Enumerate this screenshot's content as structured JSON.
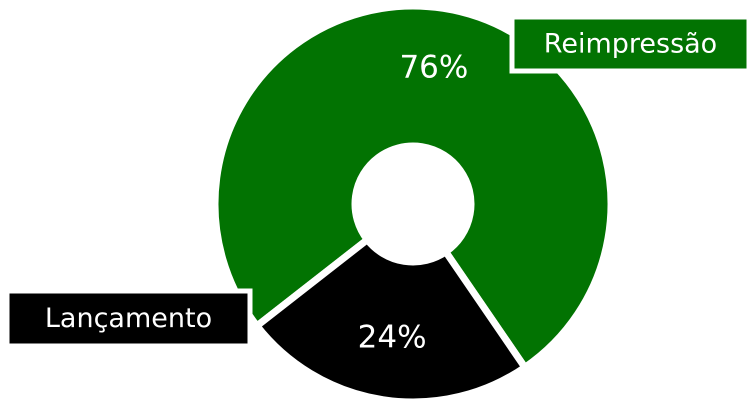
{
  "chart_data": {
    "type": "pie",
    "donut": true,
    "title": "",
    "slices": [
      {
        "label": "Reimpressão",
        "value": 76,
        "display": "76%",
        "color": "#027302"
      },
      {
        "label": "Lançamento",
        "value": 24,
        "display": "24%",
        "color": "#000000"
      }
    ],
    "legend": "callout labels next to slices",
    "background_color": "#ffffff"
  }
}
